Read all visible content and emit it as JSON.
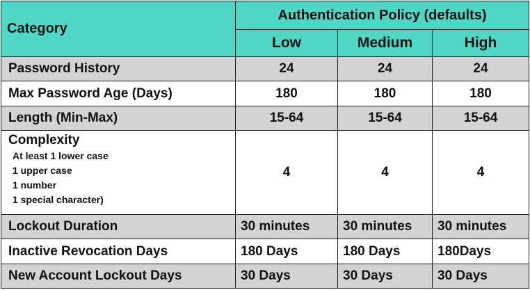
{
  "header": {
    "category_label": "Category",
    "policy_label": "Authentication Policy (defaults)",
    "levels": [
      "Low",
      "Medium",
      "High"
    ]
  },
  "rows": [
    {
      "category": "Password History",
      "values": [
        "24",
        "24",
        "24"
      ]
    },
    {
      "category": "Max Password Age (Days)",
      "values": [
        "180",
        "180",
        "180"
      ]
    },
    {
      "category": "Length (Min-Max)",
      "values": [
        "15-64",
        "15-64",
        "15-64"
      ]
    },
    {
      "category": "Complexity",
      "details": [
        "At least 1 lower case",
        "1 upper case",
        "1 number",
        "1 special character)"
      ],
      "values": [
        "4",
        "4",
        "4"
      ]
    },
    {
      "category": "Lockout Duration",
      "values": [
        "30 minutes",
        "30 minutes",
        "30 minutes"
      ]
    },
    {
      "category": "Inactive Revocation Days",
      "values": [
        "180 Days",
        "180 Days",
        "180Days"
      ]
    },
    {
      "category": "New Account Lockout Days",
      "values": [
        "30 Days",
        "30 Days",
        "30 Days"
      ]
    }
  ],
  "colors": {
    "header_bg": "#4fd6c4",
    "header_text": "#1f5470",
    "gray_row": "#d3d3d3",
    "border": "#1e1e1e"
  }
}
